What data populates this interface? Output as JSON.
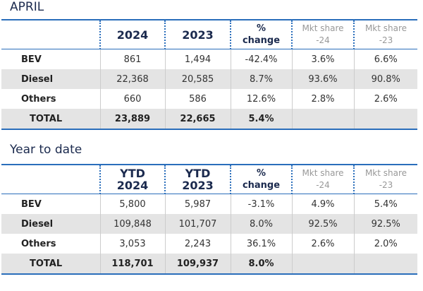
{
  "sections": [
    {
      "title": "APRIL",
      "header": [
        "2024",
        "2023",
        "% change",
        "Mkt share -24",
        "Mkt share -23"
      ],
      "rows": [
        [
          "BEV",
          "861",
          "1,494",
          "-42.4%",
          "3.6%",
          "6.6%"
        ],
        [
          "Diesel",
          "22,368",
          "20,585",
          "8.7%",
          "93.6%",
          "90.8%"
        ],
        [
          "Others",
          "660",
          "586",
          "12.6%",
          "2.8%",
          "2.6%"
        ]
      ],
      "total": [
        "TOTAL",
        "23,889",
        "22,665",
        "5.4%"
      ]
    },
    {
      "title": "Year to date",
      "header": [
        "YTD 2024",
        "YTD 2023",
        "% change",
        "Mkt share -24",
        "Mkt share -23"
      ],
      "rows": [
        [
          "BEV",
          "5,800",
          "5,987",
          "-3.1%",
          "4.9%",
          "5.4%"
        ],
        [
          "Diesel",
          "109,848",
          "101,707",
          "8.0%",
          "92.5%",
          "92.5%"
        ],
        [
          "Others",
          "3,053",
          "2,243",
          "36.1%",
          "2.6%",
          "2.0%"
        ]
      ],
      "total": [
        "TOTAL",
        "118,701",
        "109,937",
        "8.0%"
      ]
    }
  ]
}
